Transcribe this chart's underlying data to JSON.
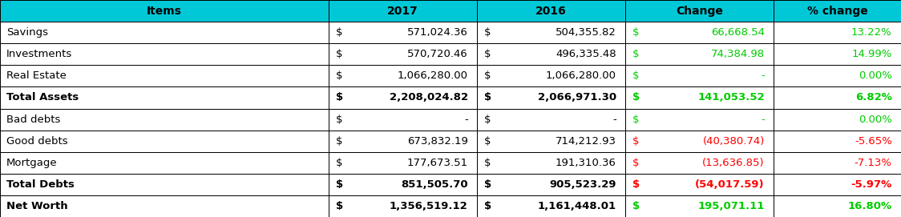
{
  "header": [
    "Items",
    "2017",
    "2016",
    "Change",
    "% change"
  ],
  "rows": [
    {
      "label": "Savings",
      "v17_dollar": "$",
      "v17_num": "571,024.36",
      "v16_dollar": "$",
      "v16_num": "504,355.82",
      "ch_dollar": "$",
      "ch_num": "66,668.54",
      "pct": "13.22%",
      "bold": false,
      "money_color": "#00cc00",
      "pct_color": "#00cc00"
    },
    {
      "label": "Investments",
      "v17_dollar": "$",
      "v17_num": "570,720.46",
      "v16_dollar": "$",
      "v16_num": "496,335.48",
      "ch_dollar": "$",
      "ch_num": "74,384.98",
      "pct": "14.99%",
      "bold": false,
      "money_color": "#00cc00",
      "pct_color": "#00cc00"
    },
    {
      "label": "Real Estate",
      "v17_dollar": "$",
      "v17_num": "1,066,280.00",
      "v16_dollar": "$",
      "v16_num": "1,066,280.00",
      "ch_dollar": "$",
      "ch_num": "-",
      "pct": "0.00%",
      "bold": false,
      "money_color": "#00cc00",
      "pct_color": "#00cc00"
    },
    {
      "label": "Total Assets",
      "v17_dollar": "$",
      "v17_num": "2,208,024.82",
      "v16_dollar": "$",
      "v16_num": "2,066,971.30",
      "ch_dollar": "$",
      "ch_num": "141,053.52",
      "pct": "6.82%",
      "bold": true,
      "money_color": "#00cc00",
      "pct_color": "#00cc00"
    },
    {
      "label": "Bad debts",
      "v17_dollar": "$",
      "v17_num": "-",
      "v16_dollar": "$",
      "v16_num": "-",
      "ch_dollar": "$",
      "ch_num": "-",
      "pct": "0.00%",
      "bold": false,
      "money_color": "#00cc00",
      "pct_color": "#00cc00"
    },
    {
      "label": "Good debts",
      "v17_dollar": "$",
      "v17_num": "673,832.19",
      "v16_dollar": "$",
      "v16_num": "714,212.93",
      "ch_dollar": "$",
      "ch_num": "(40,380.74)",
      "pct": "-5.65%",
      "bold": false,
      "money_color": "#ff0000",
      "pct_color": "#ff0000"
    },
    {
      "label": "Mortgage",
      "v17_dollar": "$",
      "v17_num": "177,673.51",
      "v16_dollar": "$",
      "v16_num": "191,310.36",
      "ch_dollar": "$",
      "ch_num": "(13,636.85)",
      "pct": "-7.13%",
      "bold": false,
      "money_color": "#ff0000",
      "pct_color": "#ff0000"
    },
    {
      "label": "Total Debts",
      "v17_dollar": "$",
      "v17_num": "851,505.70",
      "v16_dollar": "$",
      "v16_num": "905,523.29",
      "ch_dollar": "$",
      "ch_num": "(54,017.59)",
      "pct": "-5.97%",
      "bold": true,
      "money_color": "#ff0000",
      "pct_color": "#ff0000"
    },
    {
      "label": "Net Worth",
      "v17_dollar": "$",
      "v17_num": "1,356,519.12",
      "v16_dollar": "$",
      "v16_num": "1,161,448.01",
      "ch_dollar": "$",
      "ch_num": "195,071.11",
      "pct": "16.80%",
      "bold": true,
      "money_color": "#00cc00",
      "pct_color": "#00cc00"
    }
  ],
  "header_bg": "#00c8d7",
  "border_color": "#000000",
  "fig_width": 11.24,
  "fig_height": 2.71,
  "dpi": 100
}
